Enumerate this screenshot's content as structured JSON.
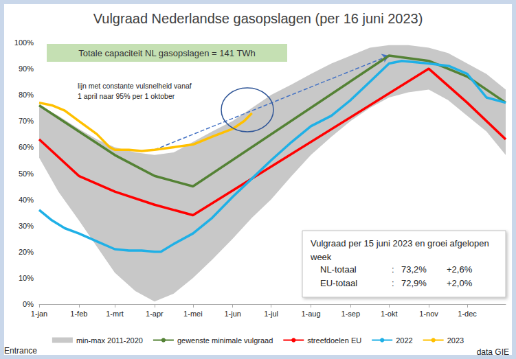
{
  "chart_data": {
    "type": "line",
    "title": "Vulgraad Nederlandse gasopslagen (per 16 juni 2023)",
    "xlim": [
      0,
      364
    ],
    "xticks": [
      {
        "value": 0,
        "label": "1-jan"
      },
      {
        "value": 31,
        "label": "1-feb"
      },
      {
        "value": 59,
        "label": "1-mrt"
      },
      {
        "value": 90,
        "label": "1-apr"
      },
      {
        "value": 120,
        "label": "1-mei"
      },
      {
        "value": 151,
        "label": "1-jun"
      },
      {
        "value": 181,
        "label": "1-jul"
      },
      {
        "value": 212,
        "label": "1-aug"
      },
      {
        "value": 243,
        "label": "1-sep"
      },
      {
        "value": 273,
        "label": "1-okt"
      },
      {
        "value": 304,
        "label": "1-nov"
      },
      {
        "value": 334,
        "label": "1-dec"
      }
    ],
    "ylim": [
      0,
      100
    ],
    "yticks": [
      {
        "value": 0,
        "label": "0%"
      },
      {
        "value": 10,
        "label": "10%"
      },
      {
        "value": 20,
        "label": "20%"
      },
      {
        "value": 30,
        "label": "30%"
      },
      {
        "value": 40,
        "label": "40%"
      },
      {
        "value": 50,
        "label": "50%"
      },
      {
        "value": 60,
        "label": "60%"
      },
      {
        "value": 70,
        "label": "70%"
      },
      {
        "value": 80,
        "label": "80%"
      },
      {
        "value": 90,
        "label": "90%"
      },
      {
        "value": 100,
        "label": "100%"
      }
    ],
    "grid": false,
    "legend": "bottom",
    "marker": "none",
    "series": [
      {
        "name": "min-max 2011-2020",
        "type": "band",
        "color": "#c8c8c8",
        "x": [
          0,
          15,
          31,
          45,
          59,
          75,
          90,
          105,
          120,
          135,
          151,
          166,
          181,
          197,
          212,
          228,
          243,
          258,
          273,
          288,
          304,
          319,
          334,
          349,
          364
        ],
        "low": [
          56,
          43,
          32,
          22,
          12,
          5,
          1,
          4,
          10,
          17,
          25,
          33,
          40,
          49,
          57,
          64,
          70,
          75,
          79,
          81,
          82,
          78,
          72,
          66,
          57
        ],
        "high": [
          76,
          72,
          67,
          63,
          60,
          58,
          57,
          58,
          62,
          66,
          70,
          75,
          80,
          84,
          88,
          92,
          95,
          98,
          99,
          99,
          98,
          96,
          92,
          88,
          82
        ]
      },
      {
        "name": "gewenste minimale vulgraad",
        "type": "line",
        "color": "#548235",
        "x": [
          0,
          31,
          59,
          90,
          120,
          273,
          304,
          334,
          364
        ],
        "values": [
          76,
          66,
          57,
          49,
          45,
          95,
          93,
          87,
          77
        ]
      },
      {
        "name": "streefdoelen EU",
        "type": "line",
        "color": "#ff0000",
        "x": [
          0,
          31,
          59,
          90,
          120,
          304,
          334,
          364
        ],
        "values": [
          63,
          49,
          43,
          38,
          34,
          90,
          77,
          63
        ]
      },
      {
        "name": "2022",
        "type": "line",
        "color": "#1fb0e6",
        "x": [
          0,
          10,
          20,
          31,
          45,
          59,
          70,
          80,
          90,
          95,
          105,
          120,
          135,
          151,
          166,
          181,
          197,
          212,
          228,
          243,
          258,
          273,
          283,
          304,
          320,
          334,
          349,
          364
        ],
        "values": [
          36,
          32,
          29,
          27,
          24,
          21,
          20.5,
          20.5,
          20,
          20,
          23,
          27,
          33,
          41,
          48,
          55,
          62,
          68,
          72,
          78,
          85,
          92,
          93,
          92,
          91,
          88,
          79,
          77
        ]
      },
      {
        "name": "2023",
        "type": "line",
        "color": "#ffc000",
        "x": [
          0,
          10,
          20,
          31,
          45,
          55,
          59,
          70,
          80,
          90,
          105,
          120,
          135,
          151,
          160,
          166
        ],
        "values": [
          77,
          76,
          74,
          70,
          65,
          60,
          59,
          59,
          58.5,
          59,
          60,
          61,
          64,
          67,
          70,
          73
        ]
      }
    ],
    "trend_line": {
      "x": [
        90,
        273
      ],
      "values": [
        59,
        95
      ],
      "color": "#4472c4",
      "line_style": "dashed",
      "label": "lijn met constante vulsnelheid vanaf\n1 april naar 95% per 1 oktober"
    },
    "note": "Totale capaciteit NL gasopslagen = 141 TWh",
    "info_box": {
      "title": "Vulgraad per 15 juni 2023 en groei afgelopen week",
      "rows": [
        [
          "NL-totaal",
          ":",
          "73,2%",
          "+2,6%"
        ],
        [
          "EU-totaal",
          ":",
          "72,9%",
          "+2,0%"
        ]
      ]
    },
    "credit": "Entrance",
    "source": "data GIE"
  }
}
